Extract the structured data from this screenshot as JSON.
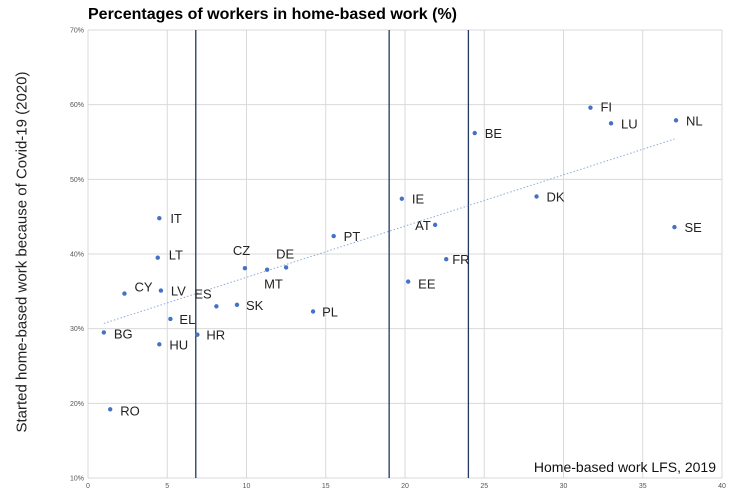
{
  "chart_data": {
    "type": "scatter",
    "title": "Percentages of workers in home-based work (%)",
    "xlabel": "",
    "ylabel": "Started home-based work because of Covid-19 (2020)",
    "annotation": "Home-based work LFS, 2019",
    "xlim": [
      0,
      40
    ],
    "ylim": [
      10,
      70
    ],
    "xticks": [
      0,
      5,
      10,
      15,
      20,
      25,
      30,
      35,
      40
    ],
    "yticks": [
      10,
      20,
      30,
      40,
      50,
      60,
      70
    ],
    "ytick_labels": [
      "10%",
      "20%",
      "30%",
      "40%",
      "50%",
      "60%",
      "70%"
    ],
    "grid": "horizontal and vertical",
    "vertical_lines_x": [
      6.8,
      19.0,
      24.0
    ],
    "trendline": {
      "style": "dotted linear",
      "x": [
        1.0,
        37.0
      ],
      "y": [
        30.7,
        55.4
      ]
    },
    "point_color": "#4472c4",
    "points": [
      {
        "label": "RO",
        "x": 1.4,
        "y": 19.2
      },
      {
        "label": "BG",
        "x": 1.0,
        "y": 29.5
      },
      {
        "label": "CY",
        "x": 2.3,
        "y": 34.7
      },
      {
        "label": "HU",
        "x": 4.5,
        "y": 27.9
      },
      {
        "label": "LV",
        "x": 4.6,
        "y": 35.1
      },
      {
        "label": "LT",
        "x": 4.4,
        "y": 39.5
      },
      {
        "label": "IT",
        "x": 4.5,
        "y": 44.8
      },
      {
        "label": "EL",
        "x": 5.2,
        "y": 31.3
      },
      {
        "label": "HR",
        "x": 6.9,
        "y": 29.2
      },
      {
        "label": "ES",
        "x": 8.1,
        "y": 33.0
      },
      {
        "label": "SK",
        "x": 9.4,
        "y": 33.2
      },
      {
        "label": "CZ",
        "x": 9.9,
        "y": 38.1
      },
      {
        "label": "MT",
        "x": 11.3,
        "y": 37.9
      },
      {
        "label": "DE",
        "x": 12.5,
        "y": 38.2
      },
      {
        "label": "PL",
        "x": 14.2,
        "y": 32.3
      },
      {
        "label": "PT",
        "x": 15.5,
        "y": 42.4
      },
      {
        "label": "IE",
        "x": 19.8,
        "y": 47.4
      },
      {
        "label": "EE",
        "x": 20.2,
        "y": 36.3
      },
      {
        "label": "AT",
        "x": 21.9,
        "y": 43.9
      },
      {
        "label": "FR",
        "x": 22.6,
        "y": 39.3
      },
      {
        "label": "BE",
        "x": 24.4,
        "y": 56.2
      },
      {
        "label": "DK",
        "x": 28.3,
        "y": 47.7
      },
      {
        "label": "FI",
        "x": 31.7,
        "y": 59.6
      },
      {
        "label": "LU",
        "x": 33.0,
        "y": 57.5
      },
      {
        "label": "SE",
        "x": 37.0,
        "y": 43.6
      },
      {
        "label": "NL",
        "x": 37.1,
        "y": 57.9
      }
    ]
  }
}
